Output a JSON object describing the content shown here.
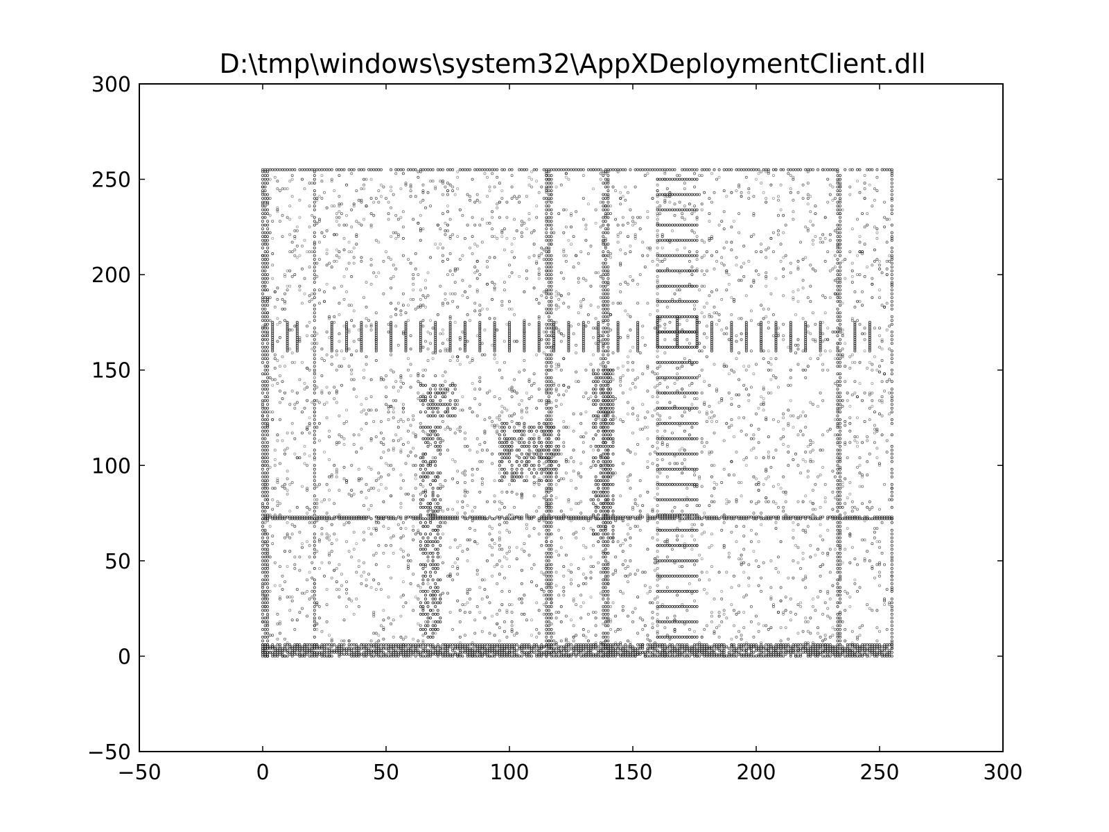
{
  "chart_data": {
    "type": "scatter",
    "title": "D:\\tmp\\windows\\system32\\AppXDeploymentClient.dll",
    "xlabel": "",
    "ylabel": "",
    "xlim": [
      -50,
      300
    ],
    "ylim": [
      -50,
      300
    ],
    "xticks": [
      -50,
      0,
      50,
      100,
      150,
      200,
      250,
      300
    ],
    "yticks": [
      -50,
      0,
      50,
      100,
      150,
      200,
      250,
      300
    ],
    "x_tick_labels": [
      "−50",
      "0",
      "50",
      "100",
      "150",
      "200",
      "250",
      "300"
    ],
    "y_tick_labels": [
      "−50",
      "0",
      "50",
      "100",
      "150",
      "200",
      "250",
      "300"
    ],
    "grid": false,
    "legend": "none",
    "marker_color": "#000000",
    "data_extent": {
      "x": [
        0,
        255
      ],
      "y": [
        0,
        255
      ]
    },
    "dense_columns_x": [
      0,
      1,
      2,
      21,
      115,
      116,
      117,
      138,
      139,
      140,
      233,
      234,
      255
    ],
    "dense_rows_y": [
      0,
      1,
      2,
      3,
      4,
      5,
      6,
      72,
      73,
      255
    ],
    "dense_clusters": [
      {
        "x": [
          96,
          120
        ],
        "y": [
          92,
          122
        ]
      },
      {
        "x": [
          64,
          78
        ],
        "y": [
          126,
          142
        ]
      },
      {
        "x": [
          64,
          72
        ],
        "y": [
          10,
          120
        ]
      },
      {
        "x": [
          134,
          142
        ],
        "y": [
          60,
          150
        ]
      }
    ],
    "vertical_segments": [
      {
        "x": 4,
        "y": [
          160,
          175
        ]
      },
      {
        "x": 10,
        "y": [
          160,
          175
        ]
      },
      {
        "x": 14,
        "y": [
          160,
          175
        ]
      },
      {
        "x": 28,
        "y": [
          160,
          175
        ]
      },
      {
        "x": 34,
        "y": [
          160,
          175
        ]
      },
      {
        "x": 40,
        "y": [
          160,
          175
        ]
      },
      {
        "x": 46,
        "y": [
          160,
          175
        ]
      },
      {
        "x": 52,
        "y": [
          160,
          175
        ]
      },
      {
        "x": 58,
        "y": [
          160,
          175
        ]
      },
      {
        "x": 64,
        "y": [
          160,
          175
        ]
      },
      {
        "x": 70,
        "y": [
          160,
          175
        ]
      },
      {
        "x": 76,
        "y": [
          160,
          175
        ]
      },
      {
        "x": 82,
        "y": [
          160,
          175
        ]
      },
      {
        "x": 88,
        "y": [
          160,
          175
        ]
      },
      {
        "x": 94,
        "y": [
          160,
          175
        ]
      },
      {
        "x": 100,
        "y": [
          160,
          175
        ]
      },
      {
        "x": 106,
        "y": [
          160,
          175
        ]
      },
      {
        "x": 112,
        "y": [
          160,
          175
        ]
      },
      {
        "x": 118,
        "y": [
          160,
          175
        ]
      },
      {
        "x": 124,
        "y": [
          160,
          175
        ]
      },
      {
        "x": 130,
        "y": [
          160,
          175
        ]
      },
      {
        "x": 136,
        "y": [
          160,
          175
        ]
      },
      {
        "x": 144,
        "y": [
          160,
          175
        ]
      },
      {
        "x": 152,
        "y": [
          160,
          175
        ]
      },
      {
        "x": 182,
        "y": [
          160,
          175
        ]
      },
      {
        "x": 190,
        "y": [
          160,
          175
        ]
      },
      {
        "x": 196,
        "y": [
          160,
          175
        ]
      },
      {
        "x": 202,
        "y": [
          160,
          175
        ]
      },
      {
        "x": 208,
        "y": [
          160,
          175
        ]
      },
      {
        "x": 214,
        "y": [
          160,
          175
        ]
      },
      {
        "x": 220,
        "y": [
          160,
          175
        ]
      },
      {
        "x": 226,
        "y": [
          160,
          175
        ]
      },
      {
        "x": 240,
        "y": [
          160,
          175
        ]
      },
      {
        "x": 246,
        "y": [
          160,
          175
        ]
      }
    ],
    "ladder": {
      "x": [
        160,
        176
      ],
      "y": [
        10,
        250
      ],
      "rungs": [
        10,
        18,
        26,
        34,
        42,
        50,
        58,
        66,
        74,
        82,
        90,
        98,
        106,
        114,
        122,
        130,
        138,
        146,
        154,
        170,
        186,
        194,
        202,
        210,
        218,
        226,
        234,
        242,
        250
      ]
    },
    "ladder_box": {
      "x": [
        160,
        176
      ],
      "y": [
        162,
        178
      ]
    },
    "sampled_points": [
      [
        3,
        240
      ],
      [
        8,
        231
      ],
      [
        12,
        212
      ],
      [
        17,
        198
      ],
      [
        25,
        186
      ],
      [
        31,
        230
      ],
      [
        38,
        244
      ],
      [
        44,
        205
      ],
      [
        49,
        190
      ],
      [
        55,
        221
      ],
      [
        60,
        247
      ],
      [
        68,
        236
      ],
      [
        73,
        214
      ],
      [
        79,
        203
      ],
      [
        85,
        230
      ],
      [
        91,
        195
      ],
      [
        97,
        186
      ],
      [
        103,
        240
      ],
      [
        109,
        222
      ],
      [
        114,
        208
      ],
      [
        121,
        247
      ],
      [
        127,
        233
      ],
      [
        133,
        215
      ],
      [
        145,
        240
      ],
      [
        150,
        228
      ],
      [
        156,
        210
      ],
      [
        168,
        252
      ],
      [
        175,
        236
      ],
      [
        181,
        219
      ],
      [
        187,
        205
      ],
      [
        193,
        247
      ],
      [
        199,
        232
      ],
      [
        205,
        214
      ],
      [
        211,
        199
      ],
      [
        217,
        243
      ],
      [
        223,
        226
      ],
      [
        229,
        212
      ],
      [
        238,
        246
      ],
      [
        244,
        225
      ],
      [
        250,
        205
      ],
      [
        5,
        145
      ],
      [
        11,
        132
      ],
      [
        18,
        120
      ],
      [
        24,
        138
      ],
      [
        30,
        112
      ],
      [
        36,
        150
      ],
      [
        42,
        127
      ],
      [
        48,
        104
      ],
      [
        53,
        141
      ],
      [
        59,
        118
      ],
      [
        66,
        135
      ],
      [
        71,
        138
      ],
      [
        75,
        129
      ],
      [
        82,
        110
      ],
      [
        88,
        146
      ],
      [
        93,
        101
      ],
      [
        99,
        113
      ],
      [
        104,
        118
      ],
      [
        108,
        105
      ],
      [
        112,
        98
      ],
      [
        118,
        120
      ],
      [
        124,
        141
      ],
      [
        130,
        107
      ],
      [
        136,
        125
      ],
      [
        142,
        148
      ],
      [
        148,
        133
      ],
      [
        154,
        119
      ],
      [
        163,
        145
      ],
      [
        171,
        128
      ],
      [
        178,
        112
      ],
      [
        184,
        139
      ],
      [
        190,
        124
      ],
      [
        196,
        116
      ],
      [
        202,
        132
      ],
      [
        208,
        108
      ],
      [
        214,
        146
      ],
      [
        220,
        120
      ],
      [
        226,
        138
      ],
      [
        238,
        112
      ],
      [
        246,
        130
      ],
      [
        4,
        88
      ],
      [
        9,
        62
      ],
      [
        15,
        45
      ],
      [
        22,
        80
      ],
      [
        28,
        55
      ],
      [
        34,
        92
      ],
      [
        40,
        38
      ],
      [
        46,
        70
      ],
      [
        52,
        58
      ],
      [
        58,
        85
      ],
      [
        63,
        30
      ],
      [
        67,
        50
      ],
      [
        70,
        66
      ],
      [
        76,
        42
      ],
      [
        81,
        78
      ],
      [
        87,
        26
      ],
      [
        92,
        64
      ],
      [
        98,
        70
      ],
      [
        103,
        85
      ],
      [
        110,
        48
      ],
      [
        116,
        36
      ],
      [
        121,
        62
      ],
      [
        127,
        88
      ],
      [
        133,
        44
      ],
      [
        139,
        70
      ],
      [
        145,
        58
      ],
      [
        151,
        82
      ],
      [
        157,
        34
      ],
      [
        164,
        60
      ],
      [
        170,
        76
      ],
      [
        177,
        40
      ],
      [
        183,
        88
      ],
      [
        189,
        52
      ],
      [
        195,
        68
      ],
      [
        200,
        64
      ],
      [
        206,
        30
      ],
      [
        212,
        74
      ],
      [
        218,
        46
      ],
      [
        224,
        90
      ],
      [
        230,
        56
      ],
      [
        236,
        80
      ],
      [
        242,
        36
      ],
      [
        248,
        62
      ],
      [
        252,
        48
      ],
      [
        6,
        22
      ],
      [
        13,
        14
      ],
      [
        19,
        30
      ],
      [
        26,
        18
      ],
      [
        33,
        8
      ],
      [
        39,
        26
      ],
      [
        45,
        12
      ],
      [
        51,
        20
      ],
      [
        57,
        9
      ],
      [
        64,
        16
      ],
      [
        69,
        24
      ],
      [
        74,
        6
      ],
      [
        80,
        18
      ],
      [
        86,
        12
      ],
      [
        92,
        28
      ],
      [
        99,
        10
      ],
      [
        105,
        22
      ],
      [
        111,
        14
      ],
      [
        117,
        30
      ],
      [
        123,
        8
      ],
      [
        129,
        20
      ],
      [
        135,
        16
      ],
      [
        146,
        26
      ],
      [
        152,
        12
      ],
      [
        158,
        20
      ],
      [
        165,
        9
      ],
      [
        172,
        24
      ],
      [
        179,
        14
      ],
      [
        186,
        18
      ],
      [
        192,
        10
      ],
      [
        198,
        26
      ],
      [
        204,
        16
      ],
      [
        210,
        8
      ],
      [
        216,
        22
      ],
      [
        222,
        12
      ],
      [
        228,
        28
      ],
      [
        235,
        18
      ],
      [
        241,
        10
      ],
      [
        247,
        24
      ],
      [
        253,
        14
      ],
      [
        2,
        180
      ],
      [
        7,
        175
      ],
      [
        20,
        168
      ],
      [
        62,
        182
      ],
      [
        120,
        190
      ],
      [
        185,
        176
      ]
    ]
  }
}
